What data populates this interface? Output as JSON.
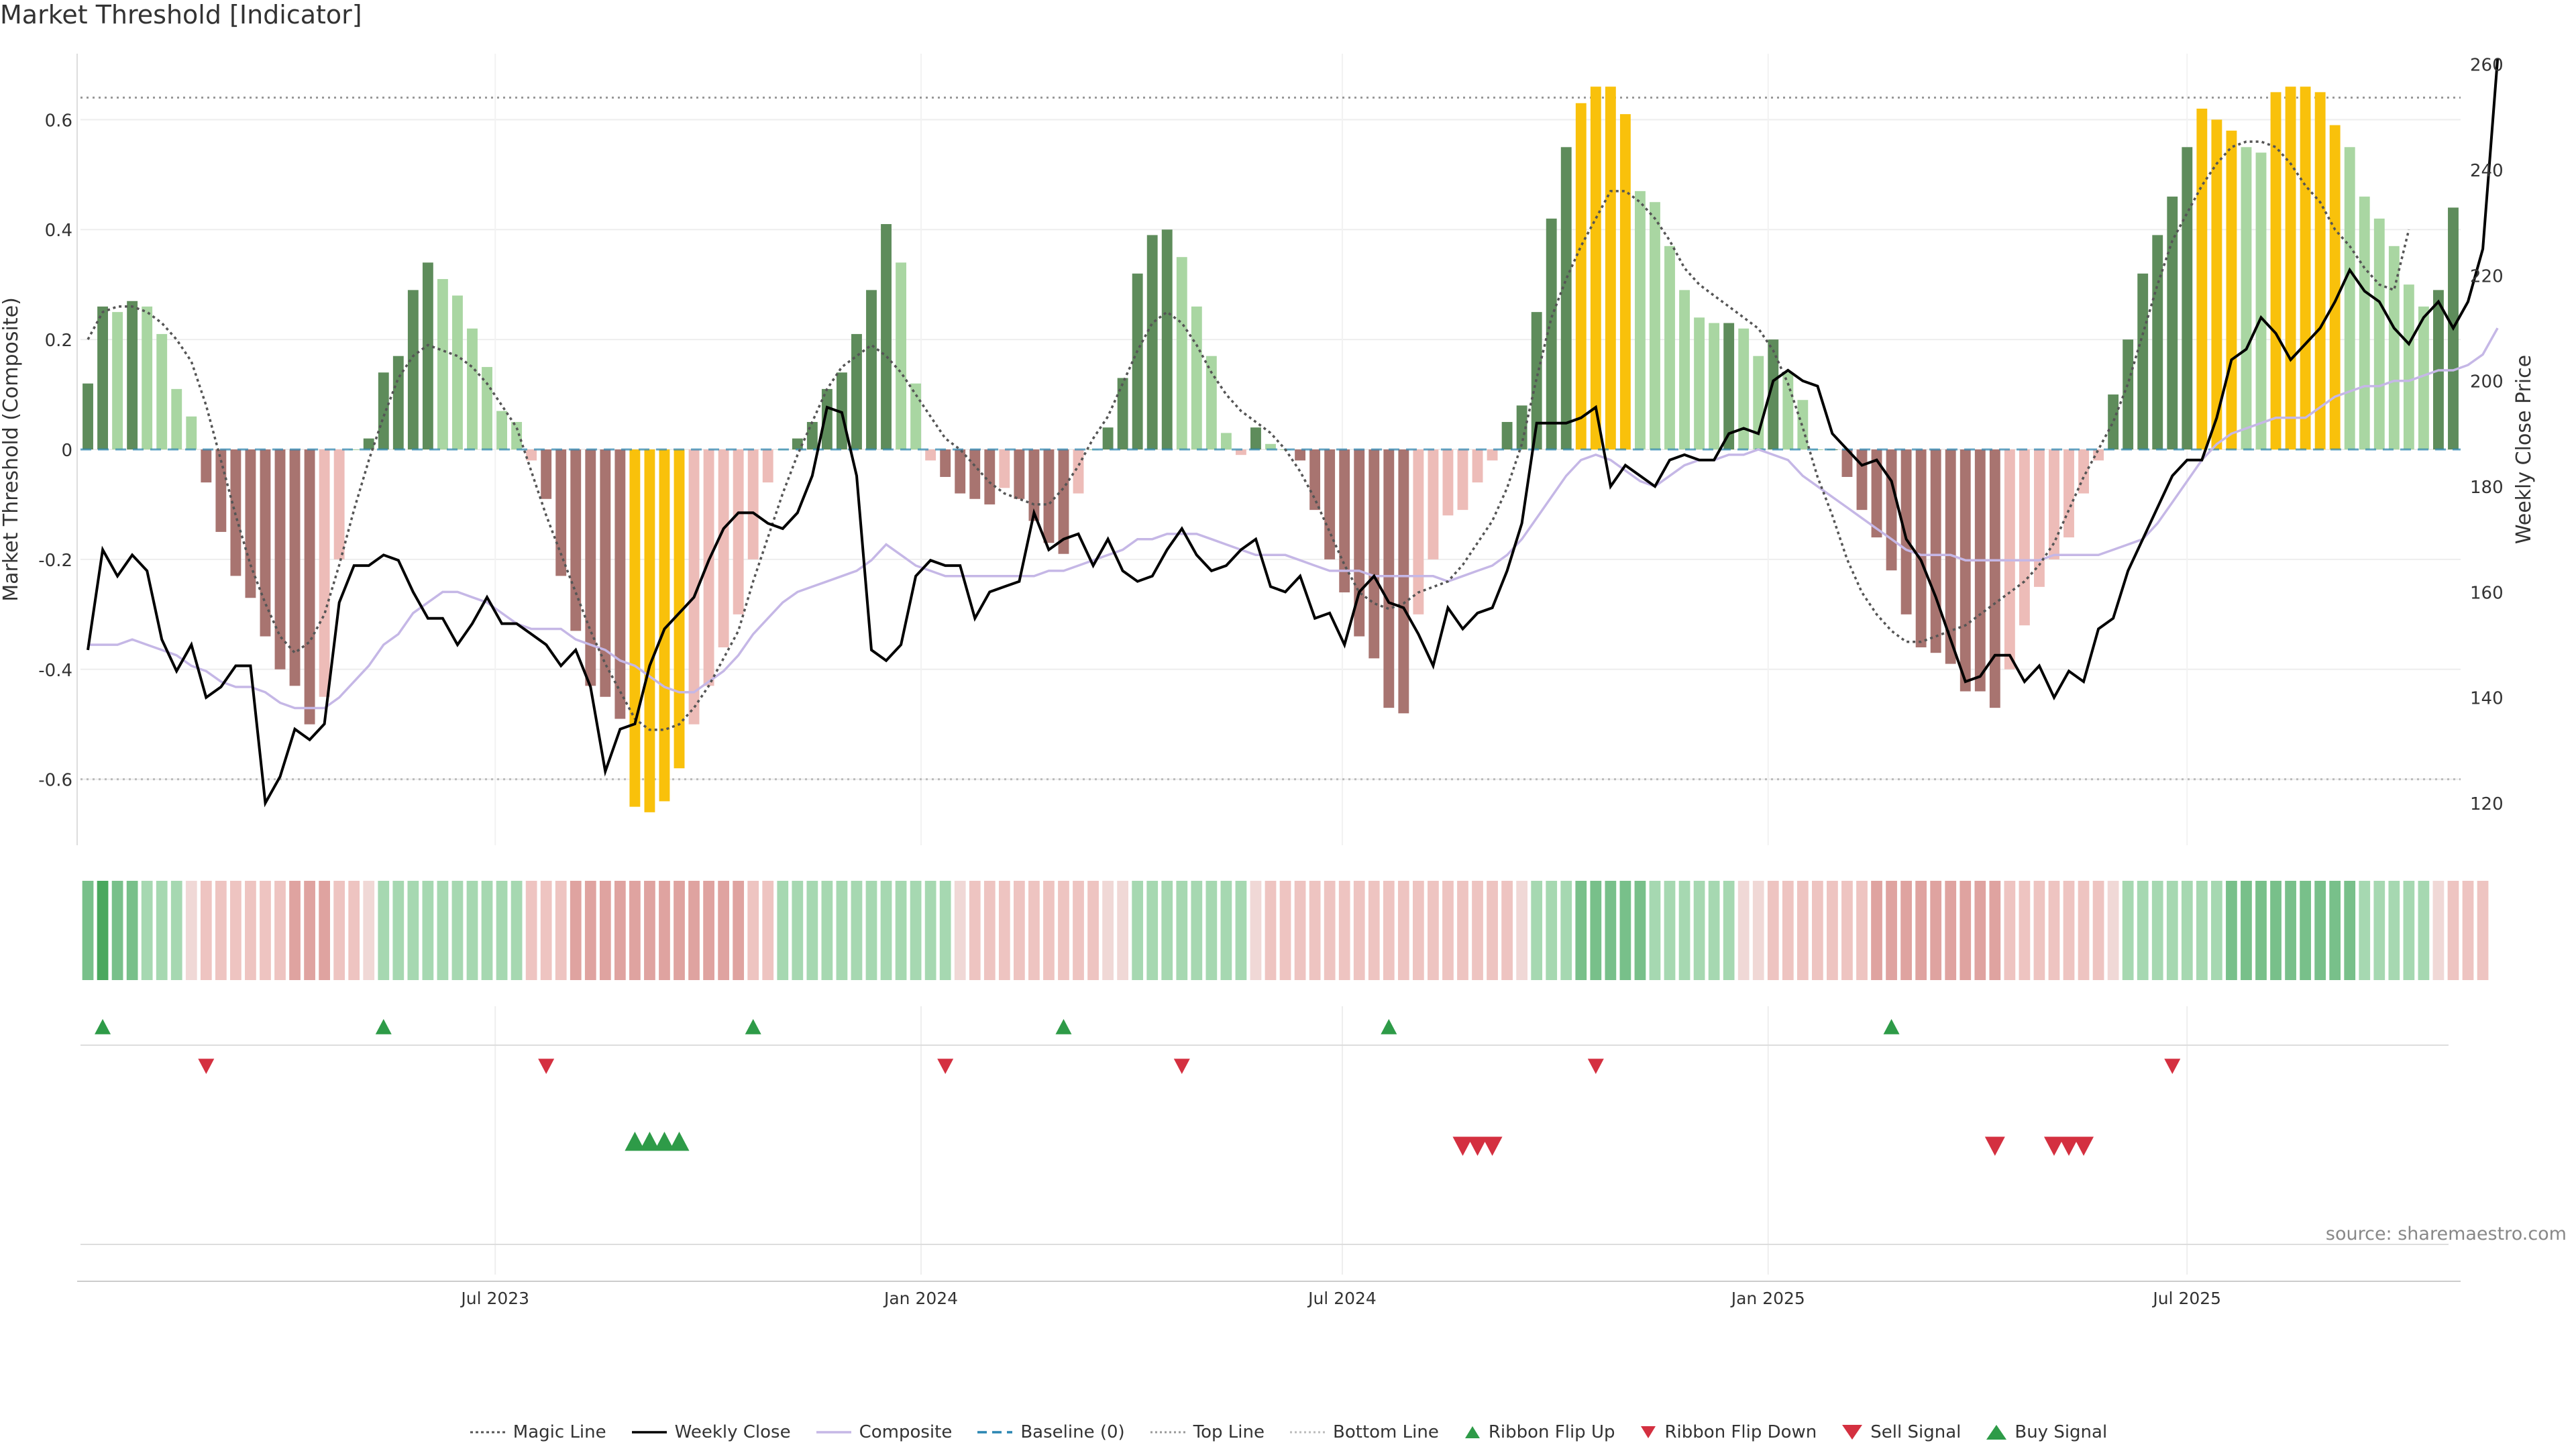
{
  "title": "Market Threshold [Indicator]",
  "source": "source: sharemaestro.com",
  "colors": {
    "strong_pos": "#5e8c5b",
    "light_pos": "#a9d6a2",
    "strong_neg": "#a87470",
    "light_neg": "#edbcb8",
    "extreme": "#f9c10b",
    "weekly_close": "#000000",
    "composite": "#c5b7e6",
    "magic": "#555555",
    "baseline": "#2a86b2",
    "threshold_line": "#999999",
    "up_signal": "#2e9b48",
    "down_signal": "#d43040"
  },
  "chart_data": {
    "type": "bar",
    "title": "Market Threshold [Indicator]",
    "ylabel": "Market Threshold (Composite)",
    "y2label": "Weekly Close Price",
    "ylim": [
      -0.72,
      0.72
    ],
    "y2lim": [
      112,
      262
    ],
    "yticks": [
      -0.6,
      -0.4,
      -0.2,
      0,
      0.2,
      0.4,
      0.6
    ],
    "ytick_labels": [
      "-0.6",
      "-0.4",
      "-0.2",
      "0",
      "0.2",
      "0.4",
      "0.6"
    ],
    "y2ticks": [
      120,
      140,
      160,
      180,
      200,
      220,
      240,
      260
    ],
    "top_line": 0.64,
    "bottom_line": -0.6,
    "baseline": 0,
    "x_start": "2023-01-06",
    "x_end": "2025-10-24",
    "x_ticks": [
      {
        "date": "2023-07-01",
        "label": "Jul 2023"
      },
      {
        "date": "2024-01-01",
        "label": "Jan 2024"
      },
      {
        "date": "2024-07-01",
        "label": "Jul 2024"
      },
      {
        "date": "2025-01-01",
        "label": "Jan 2025"
      },
      {
        "date": "2025-07-01",
        "label": "Jul 2025"
      }
    ],
    "composite_bars": [
      0.12,
      0.26,
      0.25,
      0.27,
      0.26,
      0.21,
      0.11,
      0.06,
      -0.06,
      -0.15,
      -0.23,
      -0.27,
      -0.34,
      -0.4,
      -0.43,
      -0.5,
      -0.45,
      -0.2,
      0.0,
      0.02,
      0.14,
      0.17,
      0.29,
      0.34,
      0.31,
      0.28,
      0.22,
      0.15,
      0.07,
      0.05,
      -0.02,
      -0.09,
      -0.23,
      -0.33,
      -0.43,
      -0.45,
      -0.49,
      -0.65,
      -0.66,
      -0.64,
      -0.58,
      -0.5,
      -0.43,
      -0.36,
      -0.3,
      -0.2,
      -0.06,
      0.0,
      0.02,
      0.05,
      0.11,
      0.14,
      0.21,
      0.29,
      0.41,
      0.34,
      0.12,
      -0.02,
      -0.05,
      -0.08,
      -0.09,
      -0.1,
      -0.07,
      -0.09,
      -0.13,
      -0.17,
      -0.19,
      -0.08,
      0.0,
      0.04,
      0.13,
      0.32,
      0.39,
      0.4,
      0.35,
      0.26,
      0.17,
      0.03,
      -0.01,
      0.04,
      0.01,
      0.0,
      -0.02,
      -0.11,
      -0.2,
      -0.26,
      -0.34,
      -0.38,
      -0.47,
      -0.48,
      -0.3,
      -0.2,
      -0.12,
      -0.11,
      -0.06,
      -0.02,
      0.05,
      0.08,
      0.25,
      0.42,
      0.55,
      0.63,
      0.66,
      0.66,
      0.61,
      0.47,
      0.45,
      0.37,
      0.29,
      0.24,
      0.23,
      0.23,
      0.22,
      0.17,
      0.2,
      0.14,
      0.09,
      0.0,
      0.0,
      -0.05,
      -0.11,
      -0.16,
      -0.22,
      -0.3,
      -0.36,
      -0.37,
      -0.39,
      -0.44,
      -0.44,
      -0.47,
      -0.4,
      -0.32,
      -0.25,
      -0.2,
      -0.16,
      -0.08,
      -0.02,
      0.1,
      0.2,
      0.32,
      0.39,
      0.46,
      0.55,
      0.62,
      0.6,
      0.58,
      0.55,
      0.54,
      0.65,
      0.66,
      0.66,
      0.65,
      0.59,
      0.55,
      0.46,
      0.42,
      0.37,
      0.3,
      0.26,
      0.29,
      0.44
    ],
    "weekly_close": [
      149,
      168,
      163,
      167,
      164,
      151,
      145,
      150,
      140,
      142,
      146,
      146,
      120,
      125,
      134,
      132,
      135,
      158,
      165,
      165,
      167,
      166,
      160,
      155,
      155,
      150,
      154,
      159,
      154,
      154,
      152,
      150,
      146,
      149,
      142,
      126,
      134,
      135,
      146,
      153,
      156,
      159,
      166,
      172,
      175,
      175,
      173,
      172,
      175,
      182,
      195,
      194,
      182,
      149,
      147,
      150,
      163,
      166,
      165,
      165,
      155,
      160,
      161,
      162,
      175,
      168,
      170,
      171,
      165,
      170,
      164,
      162,
      163,
      168,
      172,
      167,
      164,
      165,
      168,
      170,
      161,
      160,
      163,
      155,
      156,
      150,
      160,
      163,
      158,
      157,
      152,
      146,
      157,
      153,
      156,
      157,
      164,
      173,
      192,
      192,
      192,
      193,
      195,
      180,
      184,
      182,
      180,
      185,
      186,
      185,
      185,
      190,
      191,
      190,
      200,
      202,
      200,
      199,
      190,
      187,
      184,
      185,
      181,
      170,
      166,
      159,
      151,
      143,
      144,
      148,
      148,
      143,
      146,
      140,
      145,
      143,
      153,
      155,
      164,
      170,
      176,
      182,
      185,
      185,
      193,
      204,
      206,
      212,
      209,
      204,
      207,
      210,
      215,
      221,
      217,
      215,
      210,
      207,
      212,
      215,
      210,
      215,
      225,
      261
    ],
    "composite_line": [
      150,
      150,
      150,
      151,
      150,
      149,
      148,
      146,
      145,
      143,
      142,
      142,
      141,
      139,
      138,
      138,
      138,
      140,
      143,
      146,
      150,
      152,
      156,
      158,
      160,
      160,
      159,
      158,
      156,
      154,
      153,
      153,
      153,
      151,
      150,
      149,
      147,
      146,
      144,
      142,
      141,
      141,
      143,
      145,
      148,
      152,
      155,
      158,
      160,
      161,
      162,
      163,
      164,
      166,
      169,
      167,
      165,
      164,
      163,
      163,
      163,
      163,
      163,
      163,
      163,
      164,
      164,
      165,
      166,
      167,
      168,
      170,
      170,
      171,
      171,
      171,
      170,
      169,
      168,
      167,
      167,
      167,
      166,
      165,
      164,
      164,
      164,
      163,
      163,
      163,
      163,
      163,
      162,
      163,
      164,
      165,
      167,
      170,
      174,
      178,
      182,
      185,
      186,
      185,
      183,
      181,
      180,
      182,
      184,
      185,
      185,
      186,
      186,
      187,
      186,
      185,
      182,
      180,
      178,
      176,
      174,
      172,
      170,
      168,
      167,
      167,
      167,
      166,
      166,
      166,
      166,
      166,
      166,
      167,
      167,
      167,
      167,
      168,
      169,
      170,
      173,
      177,
      181,
      185,
      188,
      190,
      191,
      192,
      193,
      193,
      193,
      195,
      197,
      198,
      199,
      199,
      200,
      200,
      201,
      202,
      202,
      203,
      205,
      210
    ],
    "magic_line": [
      0.2,
      0.25,
      0.26,
      0.26,
      0.25,
      0.23,
      0.2,
      0.16,
      0.08,
      -0.02,
      -0.12,
      -0.21,
      -0.28,
      -0.34,
      -0.37,
      -0.35,
      -0.3,
      -0.21,
      -0.11,
      -0.02,
      0.06,
      0.13,
      0.17,
      0.19,
      0.18,
      0.17,
      0.15,
      0.12,
      0.08,
      0.04,
      -0.04,
      -0.12,
      -0.19,
      -0.26,
      -0.33,
      -0.39,
      -0.44,
      -0.49,
      -0.51,
      -0.51,
      -0.5,
      -0.47,
      -0.43,
      -0.38,
      -0.33,
      -0.24,
      -0.16,
      -0.08,
      -0.01,
      0.05,
      0.11,
      0.15,
      0.17,
      0.19,
      0.17,
      0.14,
      0.1,
      0.06,
      0.02,
      0.0,
      -0.03,
      -0.06,
      -0.08,
      -0.09,
      -0.1,
      -0.1,
      -0.07,
      -0.03,
      0.02,
      0.06,
      0.12,
      0.18,
      0.23,
      0.25,
      0.23,
      0.19,
      0.14,
      0.1,
      0.07,
      0.05,
      0.03,
      0.0,
      -0.04,
      -0.09,
      -0.15,
      -0.21,
      -0.26,
      -0.28,
      -0.29,
      -0.28,
      -0.26,
      -0.25,
      -0.24,
      -0.21,
      -0.17,
      -0.13,
      -0.07,
      0.01,
      0.13,
      0.24,
      0.31,
      0.37,
      0.42,
      0.47,
      0.47,
      0.45,
      0.42,
      0.38,
      0.33,
      0.3,
      0.28,
      0.26,
      0.24,
      0.22,
      0.18,
      0.12,
      0.04,
      -0.05,
      -0.12,
      -0.2,
      -0.26,
      -0.3,
      -0.33,
      -0.35,
      -0.35,
      -0.34,
      -0.33,
      -0.32,
      -0.3,
      -0.28,
      -0.26,
      -0.24,
      -0.21,
      -0.17,
      -0.11,
      -0.05,
      0.0,
      0.05,
      0.12,
      0.21,
      0.3,
      0.38,
      0.43,
      0.48,
      0.52,
      0.55,
      0.56,
      0.56,
      0.55,
      0.52,
      0.48,
      0.45,
      0.4,
      0.37,
      0.33,
      0.3,
      0.29,
      0.4
    ],
    "ribbon_intensity": [
      2,
      3,
      2,
      2,
      1,
      1,
      1,
      0,
      -1,
      -1,
      -1,
      -1,
      -1,
      -1,
      -2,
      -2,
      -2,
      -1,
      -1,
      0,
      1,
      1,
      1,
      1,
      1,
      1,
      1,
      1,
      1,
      1,
      -1,
      -1,
      -1,
      -2,
      -2,
      -2,
      -2,
      -2,
      -2,
      -2,
      -2,
      -2,
      -2,
      -2,
      -2,
      -1,
      -1,
      1,
      1,
      1,
      1,
      1,
      1,
      1,
      1,
      1,
      1,
      1,
      1,
      0,
      -1,
      -1,
      -1,
      -1,
      -1,
      -1,
      -1,
      -1,
      -1,
      0,
      0,
      1,
      1,
      1,
      1,
      1,
      1,
      1,
      1,
      0,
      -1,
      -1,
      -1,
      -1,
      -1,
      -1,
      -1,
      -1,
      -1,
      -1,
      -1,
      -1,
      -1,
      -1,
      -1,
      -1,
      -1,
      0,
      1,
      1,
      1,
      2,
      2,
      2,
      2,
      2,
      1,
      1,
      1,
      1,
      1,
      1,
      0,
      0,
      -1,
      -1,
      -1,
      -1,
      -1,
      -1,
      -1,
      -2,
      -2,
      -2,
      -2,
      -2,
      -2,
      -2,
      -2,
      -2,
      -1,
      -1,
      -1,
      -1,
      -1,
      -1,
      -1,
      0,
      1,
      1,
      1,
      1,
      1,
      1,
      1,
      2,
      2,
      2,
      2,
      2,
      2,
      2,
      2,
      2,
      1,
      1,
      1,
      1,
      1,
      0,
      -1,
      -1,
      -1
    ],
    "ribbon_flip_up_weeks": [
      1,
      20,
      45,
      66,
      88,
      122
    ],
    "ribbon_flip_down_weeks": [
      8,
      31,
      58,
      74,
      102,
      141
    ],
    "buy_signal_weeks": [
      37,
      38,
      39,
      40
    ],
    "sell_signal_weeks": [
      93,
      94,
      95,
      129,
      133,
      134,
      135
    ]
  },
  "legend": [
    {
      "key": "magic",
      "label": "Magic Line"
    },
    {
      "key": "close",
      "label": "Weekly Close"
    },
    {
      "key": "composite",
      "label": "Composite"
    },
    {
      "key": "baseline",
      "label": "Baseline (0)"
    },
    {
      "key": "top",
      "label": "Top Line"
    },
    {
      "key": "bottom",
      "label": "Bottom Line"
    },
    {
      "key": "flip_up",
      "label": "Ribbon Flip Up"
    },
    {
      "key": "flip_down",
      "label": "Ribbon Flip Down"
    },
    {
      "key": "sell",
      "label": "Sell Signal"
    },
    {
      "key": "buy",
      "label": "Buy Signal"
    }
  ]
}
